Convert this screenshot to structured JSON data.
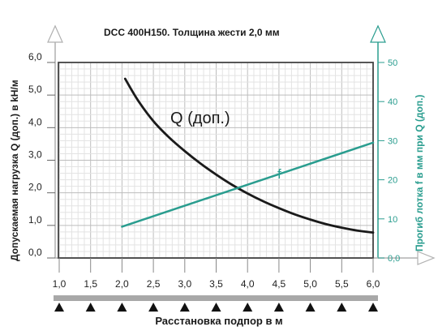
{
  "chart_data": {
    "type": "line",
    "title": "DCC 400H150. Толщина жести 2,0 мм",
    "xlabel": "Расстановка подпор в м",
    "ylabel_left": "Допускаемая нагрузка Q (доп.) в kH/м",
    "ylabel_right": "Прогиб лотка f в мм при Q (доп.)",
    "x_ticks": [
      "1,0",
      "1,5",
      "2,0",
      "2,5",
      "3,0",
      "3,5",
      "4,0",
      "4,5",
      "5,0",
      "5,5",
      "6,0"
    ],
    "y_left_ticks": [
      "0,0",
      "1,0",
      "2,0",
      "3,0",
      "4,0",
      "5,0",
      "6,0"
    ],
    "y_right_ticks": [
      "0,0",
      "10",
      "20",
      "30",
      "40",
      "50"
    ],
    "xlim": [
      1.0,
      6.0
    ],
    "ylim_left": [
      0.0,
      6.0
    ],
    "ylim_right": [
      0.0,
      50.0
    ],
    "grid": true,
    "series": [
      {
        "name": "Q (доп.)",
        "axis": "left",
        "color": "#1a1a1a",
        "x": [
          2.05,
          2.25,
          2.5,
          2.75,
          3.0,
          3.25,
          3.5,
          3.75,
          4.0,
          4.25,
          4.5,
          4.75,
          5.0,
          5.25,
          5.5,
          5.75,
          6.0
        ],
        "y": [
          5.5,
          4.85,
          4.2,
          3.7,
          3.28,
          2.9,
          2.56,
          2.25,
          1.98,
          1.74,
          1.53,
          1.34,
          1.18,
          1.04,
          0.93,
          0.84,
          0.78
        ]
      },
      {
        "name": "f",
        "axis": "right",
        "color": "#2a9d8f",
        "x": [
          2.0,
          6.0
        ],
        "y": [
          8.0,
          29.5
        ]
      }
    ],
    "support_markers": [
      "1,0",
      "1,5",
      "2,0",
      "2,5",
      "3,0",
      "3,5",
      "4,0",
      "4,5",
      "5,0",
      "5,5",
      "6,0"
    ]
  }
}
